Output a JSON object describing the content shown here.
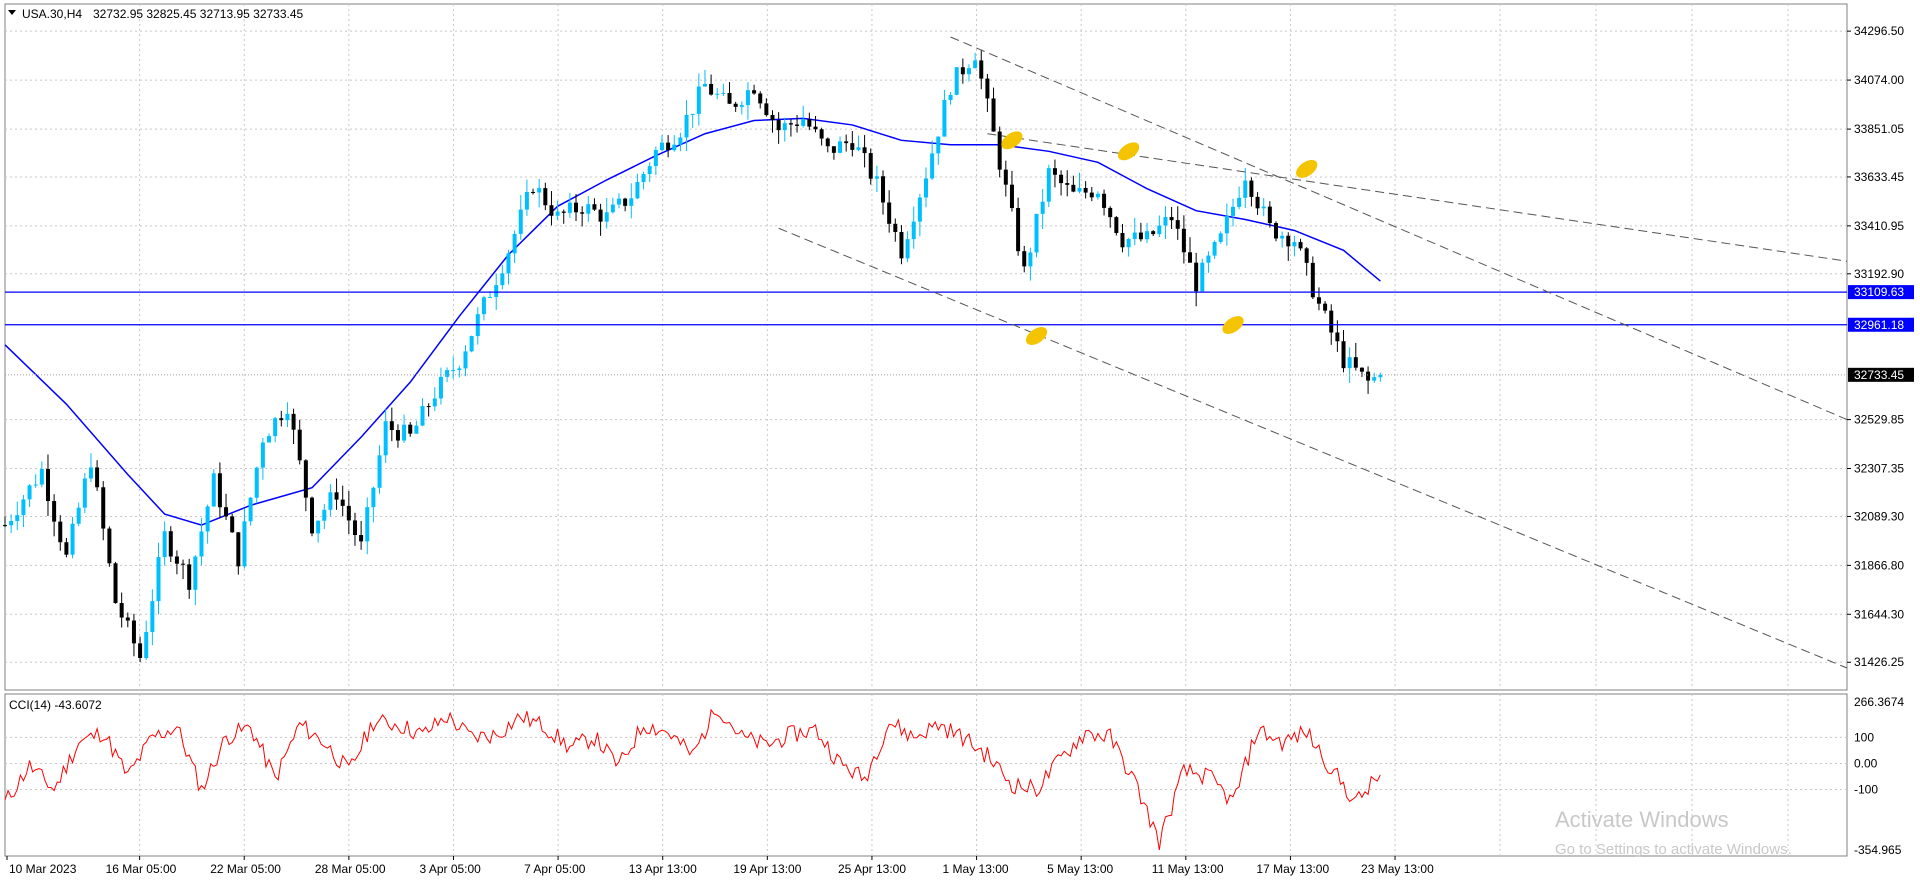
{
  "header": {
    "symbol_label": "USA.30,H4",
    "ohlc_label": "32732.95 32825.45 32713.95 32733.45"
  },
  "indicator": {
    "label": "CCI(14) -43.6072"
  },
  "watermark": {
    "title": "Activate Windows",
    "subtitle": "Go to Settings to activate Windows."
  },
  "colors": {
    "bull_candle": "#00bfff",
    "bear_candle": "#000000",
    "moving_average": "#0000ff",
    "horizontal_levels": "#0000ff",
    "trend_lines": "#555555",
    "cci_line": "#ff0000",
    "markers": "#f5c400",
    "grid": "#c8c8c8"
  },
  "chart_data": [
    {
      "type": "candlestick",
      "symbol": "USA.30",
      "timeframe": "H4",
      "ylim": [
        31300,
        34420
      ],
      "y_ticks": [
        34296.5,
        34074.0,
        33851.05,
        33633.45,
        33410.95,
        33192.9,
        32529.85,
        32307.35,
        32089.3,
        31866.8,
        31644.3,
        31426.25
      ],
      "x_tick_labels": [
        "10 Mar 2023",
        "16 Mar 05:00",
        "22 Mar 05:00",
        "28 Mar 05:00",
        "3 Apr 05:00",
        "7 Apr 05:00",
        "13 Apr 13:00",
        "19 Apr 13:00",
        "25 Apr 13:00",
        "1 May 13:00",
        "5 May 13:00",
        "11 May 13:00",
        "17 May 13:00",
        "23 May 13:00"
      ],
      "current_price": 32733.45,
      "horizontal_levels": [
        33109.63,
        32961.18
      ],
      "close_path": [
        [
          0,
          32050
        ],
        [
          6,
          32300
        ],
        [
          10,
          31900
        ],
        [
          14,
          32350
        ],
        [
          18,
          31700
        ],
        [
          22,
          31450
        ],
        [
          26,
          32000
        ],
        [
          30,
          31800
        ],
        [
          34,
          32250
        ],
        [
          38,
          31900
        ],
        [
          42,
          32450
        ],
        [
          46,
          32600
        ],
        [
          50,
          32050
        ],
        [
          54,
          32200
        ],
        [
          58,
          31950
        ],
        [
          62,
          32500
        ],
        [
          66,
          32450
        ],
        [
          70,
          32650
        ],
        [
          74,
          32800
        ],
        [
          78,
          33050
        ],
        [
          82,
          33300
        ],
        [
          86,
          33600
        ],
        [
          90,
          33450
        ],
        [
          94,
          33500
        ],
        [
          98,
          33450
        ],
        [
          102,
          33550
        ],
        [
          106,
          33750
        ],
        [
          110,
          33850
        ],
        [
          114,
          34050
        ],
        [
          118,
          33950
        ],
        [
          122,
          34050
        ],
        [
          126,
          33850
        ],
        [
          130,
          33900
        ],
        [
          134,
          33750
        ],
        [
          138,
          33800
        ],
        [
          142,
          33600
        ],
        [
          146,
          33300
        ],
        [
          150,
          33650
        ],
        [
          154,
          34050
        ],
        [
          158,
          34200
        ],
        [
          162,
          33700
        ],
        [
          166,
          33200
        ],
        [
          170,
          33650
        ],
        [
          174,
          33550
        ],
        [
          178,
          33580
        ],
        [
          182,
          33350
        ],
        [
          186,
          33350
        ],
        [
          190,
          33450
        ],
        [
          194,
          33150
        ],
        [
          198,
          33350
        ],
        [
          202,
          33650
        ],
        [
          206,
          33400
        ],
        [
          210,
          33350
        ],
        [
          214,
          33050
        ],
        [
          218,
          32800
        ],
        [
          222,
          32700
        ],
        [
          224,
          32733
        ]
      ],
      "moving_average_path": [
        [
          0,
          32870
        ],
        [
          10,
          32600
        ],
        [
          20,
          32280
        ],
        [
          26,
          32100
        ],
        [
          32,
          32050
        ],
        [
          40,
          32140
        ],
        [
          50,
          32220
        ],
        [
          58,
          32450
        ],
        [
          66,
          32700
        ],
        [
          74,
          33000
        ],
        [
          82,
          33280
        ],
        [
          90,
          33500
        ],
        [
          98,
          33620
        ],
        [
          106,
          33730
        ],
        [
          114,
          33830
        ],
        [
          122,
          33890
        ],
        [
          130,
          33900
        ],
        [
          138,
          33870
        ],
        [
          146,
          33800
        ],
        [
          154,
          33780
        ],
        [
          162,
          33780
        ],
        [
          170,
          33750
        ],
        [
          178,
          33700
        ],
        [
          186,
          33580
        ],
        [
          194,
          33480
        ],
        [
          202,
          33440
        ],
        [
          210,
          33390
        ],
        [
          218,
          33300
        ],
        [
          224,
          33160
        ]
      ],
      "trend_lines": [
        {
          "name": "upper-channel",
          "points": [
            [
              154,
              34270
            ],
            [
              300,
              32530
            ]
          ]
        },
        {
          "name": "lower-channel",
          "points": [
            [
              126,
              33400
            ],
            [
              300,
              31400
            ]
          ]
        },
        {
          "name": "upper-trendline",
          "points": [
            [
              160,
              33830
            ],
            [
              300,
              33250
            ]
          ]
        }
      ],
      "markers": [
        {
          "name": "marker-high-1",
          "point": [
            164,
            33800
          ]
        },
        {
          "name": "marker-high-2",
          "point": [
            183,
            33750
          ]
        },
        {
          "name": "marker-high-3",
          "point": [
            212,
            33670
          ]
        },
        {
          "name": "marker-low-1",
          "point": [
            168,
            32910
          ]
        },
        {
          "name": "marker-low-2",
          "point": [
            200,
            32960
          ]
        }
      ]
    },
    {
      "type": "line",
      "indicator": "CCI(14)",
      "current_value": -43.6072,
      "ylim": [
        -354.965,
        266.3674
      ],
      "y_ticks": [
        266.3674,
        100,
        0.0,
        -100,
        -354.965
      ],
      "series": [
        {
          "values": [
            [
              0,
              -150
            ],
            [
              4,
              -10
            ],
            [
              8,
              -100
            ],
            [
              12,
              80
            ],
            [
              16,
              120
            ],
            [
              20,
              -50
            ],
            [
              24,
              100
            ],
            [
              28,
              140
            ],
            [
              32,
              -100
            ],
            [
              36,
              100
            ],
            [
              40,
              140
            ],
            [
              44,
              -60
            ],
            [
              48,
              150
            ],
            [
              52,
              80
            ],
            [
              56,
              -30
            ],
            [
              60,
              160
            ],
            [
              64,
              150
            ],
            [
              68,
              110
            ],
            [
              72,
              180
            ],
            [
              76,
              100
            ],
            [
              80,
              110
            ],
            [
              84,
              180
            ],
            [
              88,
              140
            ],
            [
              92,
              60
            ],
            [
              96,
              100
            ],
            [
              100,
              -10
            ],
            [
              104,
              150
            ],
            [
              108,
              120
            ],
            [
              112,
              30
            ],
            [
              116,
              220
            ],
            [
              120,
              100
            ],
            [
              124,
              70
            ],
            [
              128,
              110
            ],
            [
              132,
              130
            ],
            [
              136,
              0
            ],
            [
              140,
              -60
            ],
            [
              144,
              160
            ],
            [
              148,
              100
            ],
            [
              152,
              150
            ],
            [
              156,
              100
            ],
            [
              160,
              30
            ],
            [
              164,
              -80
            ],
            [
              168,
              -100
            ],
            [
              172,
              20
            ],
            [
              176,
              120
            ],
            [
              180,
              100
            ],
            [
              184,
              -70
            ],
            [
              188,
              -300
            ],
            [
              192,
              -30
            ],
            [
              196,
              -50
            ],
            [
              200,
              -150
            ],
            [
              204,
              130
            ],
            [
              208,
              80
            ],
            [
              212,
              120
            ],
            [
              216,
              -20
            ],
            [
              220,
              -150
            ],
            [
              224,
              -44
            ]
          ]
        }
      ]
    }
  ]
}
